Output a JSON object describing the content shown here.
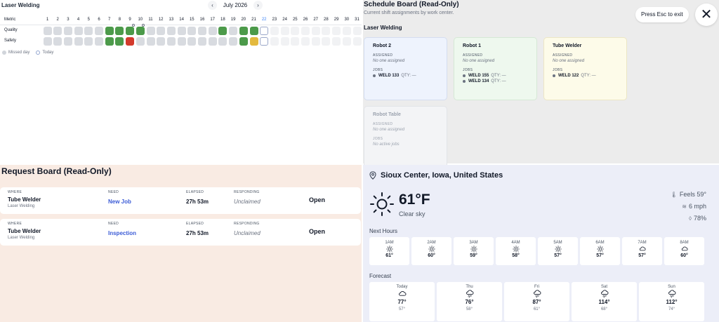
{
  "metric_board": {
    "title": "Laser Welding",
    "month": "July 2026",
    "prev": "‹",
    "next": "›",
    "metric_header": "Metric",
    "days": [
      1,
      2,
      3,
      4,
      5,
      6,
      7,
      8,
      9,
      10,
      11,
      12,
      13,
      14,
      15,
      16,
      17,
      18,
      19,
      20,
      21,
      22,
      23,
      24,
      25,
      26,
      27,
      28,
      29,
      30,
      31
    ],
    "today": 22,
    "rows": [
      {
        "label": "Quality",
        "states": [
          "x",
          "x",
          "x",
          "x",
          "x",
          "x",
          "g",
          "g",
          "g",
          "g",
          "x",
          "x",
          "x",
          "x",
          "x",
          "x",
          "x",
          "g",
          "x",
          "g",
          "g",
          "t",
          "f",
          "f",
          "f",
          "f",
          "f",
          "f",
          "f",
          "f",
          "f"
        ]
      },
      {
        "label": "Safety",
        "states": [
          "x",
          "x",
          "x",
          "x",
          "x",
          "x",
          "g",
          "g",
          "r",
          "x",
          "x",
          "x",
          "x",
          "x",
          "x",
          "x",
          "x",
          "x",
          "x",
          "g",
          "y",
          "t",
          "f",
          "f",
          "f",
          "f",
          "f",
          "f",
          "f",
          "f",
          "f"
        ]
      }
    ],
    "legend": {
      "missed": "Missed day",
      "today": "Today"
    }
  },
  "schedule": {
    "title": "Schedule Board (Read-Only)",
    "subtitle": "Current shift assignments by work center.",
    "esc_label": "Press Esc to exit",
    "close_glyph": "✕",
    "section": "Laser Welding",
    "assigned_label": "ASSIGNED",
    "jobs_label": "JOBS",
    "cards": [
      {
        "name": "Robot 2",
        "assigned": "No one assigned",
        "jobs": [
          {
            "id": "WELD 133",
            "qty": "QTY: —"
          }
        ],
        "bg": "#eef3fd",
        "border": "#d4ddf0"
      },
      {
        "name": "Robot 1",
        "assigned": "No one assigned",
        "jobs": [
          {
            "id": "WELD 155",
            "qty": "QTY: —"
          },
          {
            "id": "WELD 134",
            "qty": "QTY: —"
          }
        ],
        "bg": "#eef8ee",
        "border": "#d5e8d5"
      },
      {
        "name": "Tube Welder",
        "assigned": "No one assigned",
        "jobs": [
          {
            "id": "WELD 122",
            "qty": "QTY: —"
          }
        ],
        "bg": "#fdfbe9",
        "border": "#ece6c4"
      },
      {
        "name": "Robot Table",
        "assigned": "No one assigned",
        "no_jobs": "No active jobs",
        "bg": "#f3f4f6",
        "border": "#e2e4e8"
      }
    ]
  },
  "requests": {
    "title": "Request Board (Read-Only)",
    "labels": {
      "where": "WHERE",
      "need": "NEED",
      "elapsed": "ELAPSED",
      "responding": "RESPONDING"
    },
    "rows": [
      {
        "where": "Tube Welder",
        "where_sub": "Laser Welding",
        "need": "New Job",
        "elapsed": "27h 53m",
        "responding": "Unclaimed",
        "status": "Open"
      },
      {
        "where": "Tube Welder",
        "where_sub": "Laser Welding",
        "need": "Inspection",
        "elapsed": "27h 53m",
        "responding": "Unclaimed",
        "status": "Open"
      }
    ]
  },
  "weather": {
    "location": "Sioux Center, Iowa, United States",
    "temp": "61°F",
    "condition": "Clear sky",
    "feels": "Feels 59°",
    "wind": "6 mph",
    "humidity": "78%",
    "next_hours_label": "Next Hours",
    "hours": [
      {
        "t": "1AM",
        "icon": "sun",
        "v": "61°"
      },
      {
        "t": "2AM",
        "icon": "sun",
        "v": "60°"
      },
      {
        "t": "3AM",
        "icon": "sun",
        "v": "59°"
      },
      {
        "t": "4AM",
        "icon": "sun",
        "v": "58°"
      },
      {
        "t": "5AM",
        "icon": "sun",
        "v": "57°"
      },
      {
        "t": "6AM",
        "icon": "sun",
        "v": "57°"
      },
      {
        "t": "7AM",
        "icon": "cloud",
        "v": "57°"
      },
      {
        "t": "8AM",
        "icon": "cloud",
        "v": "60°"
      }
    ],
    "forecast_label": "Forecast",
    "days": [
      {
        "d": "Today",
        "icon": "cloud",
        "hi": "77°",
        "lo": "57°"
      },
      {
        "d": "Thu",
        "icon": "rain",
        "hi": "76°",
        "lo": "58°"
      },
      {
        "d": "Fri",
        "icon": "rain",
        "hi": "87°",
        "lo": "61°"
      },
      {
        "d": "Sat",
        "icon": "rain",
        "hi": "114°",
        "lo": "68°"
      },
      {
        "d": "Sun",
        "icon": "rain",
        "hi": "112°",
        "lo": "74°"
      }
    ]
  }
}
